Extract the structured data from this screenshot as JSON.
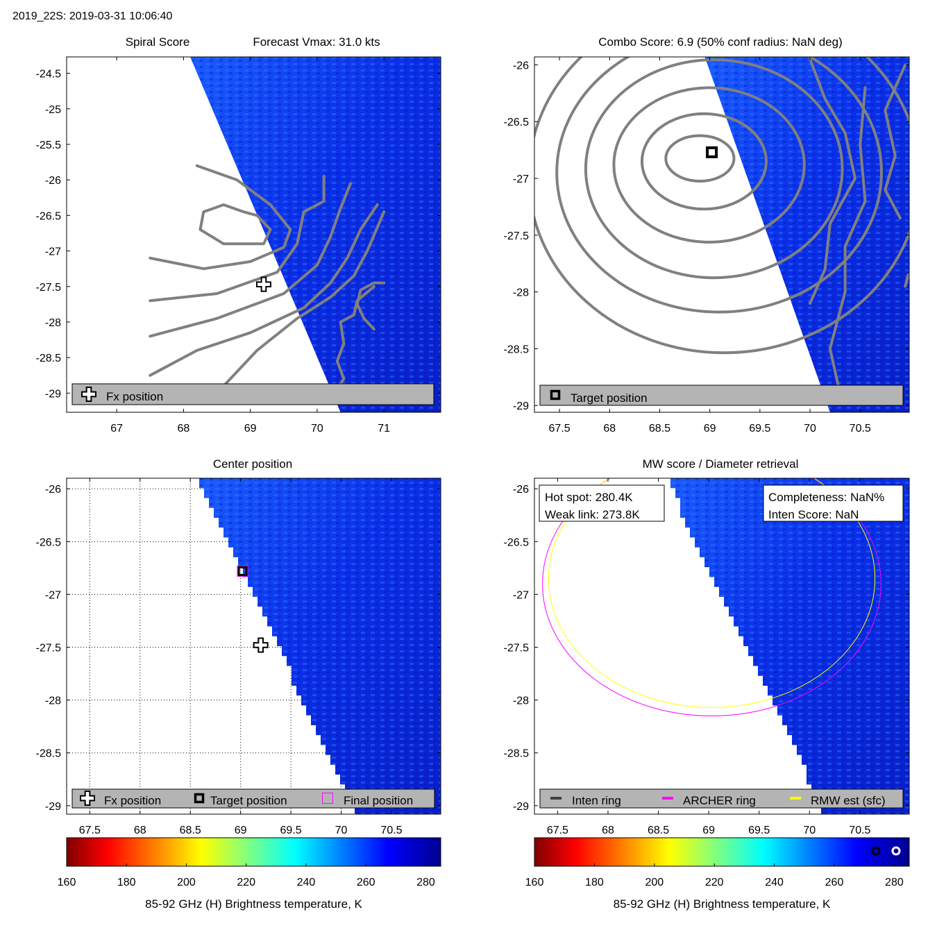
{
  "header": "2019_22S: 2019-03-31 10:06:40",
  "colors": {
    "contour": "#808080",
    "legend_bg": "#b4b4b4",
    "inten_ring": "#404040",
    "archer_ring": "#ff00ff",
    "rmw_ring": "#ffff00",
    "final_marker": "#ff00ff"
  },
  "chart_data": [
    {
      "id": "spiral",
      "type": "heatmap",
      "title_left": "Spiral Score",
      "title_right": "Forecast Vmax: 31.0 kts",
      "xlim": [
        66.25,
        71.85
      ],
      "ylim": [
        -29.27,
        -24.27
      ],
      "xticks": [
        67,
        68,
        69,
        70,
        71
      ],
      "yticks": [
        -24.5,
        -25,
        -25.5,
        -26,
        -26.5,
        -27,
        -27.5,
        -28,
        -28.5,
        -29
      ],
      "swath_edge": [
        [
          68.1,
          -24.27
        ],
        [
          70.35,
          -29.27
        ]
      ],
      "contours": [
        [
          [
            68.9,
            -26.45
          ],
          [
            68.6,
            -26.35
          ],
          [
            68.3,
            -26.45
          ],
          [
            68.25,
            -26.7
          ],
          [
            68.6,
            -26.9
          ],
          [
            69.2,
            -26.9
          ],
          [
            69.3,
            -26.7
          ],
          [
            69.1,
            -26.5
          ],
          [
            68.9,
            -26.45
          ]
        ],
        [
          [
            68.2,
            -25.8
          ],
          [
            68.8,
            -26.0
          ],
          [
            69.3,
            -26.35
          ],
          [
            69.6,
            -26.7
          ],
          [
            69.5,
            -26.95
          ],
          [
            69.0,
            -27.15
          ],
          [
            68.3,
            -27.25
          ],
          [
            67.5,
            -27.1
          ]
        ],
        [
          [
            70.1,
            -25.95
          ],
          [
            70.1,
            -26.3
          ],
          [
            69.8,
            -26.45
          ],
          [
            69.7,
            -26.9
          ],
          [
            69.4,
            -27.3
          ],
          [
            68.5,
            -27.6
          ],
          [
            67.5,
            -27.7
          ]
        ],
        [
          [
            70.5,
            -26.05
          ],
          [
            70.35,
            -26.4
          ],
          [
            70.2,
            -26.8
          ],
          [
            70.0,
            -27.2
          ],
          [
            69.5,
            -27.6
          ],
          [
            68.5,
            -27.95
          ],
          [
            67.5,
            -28.2
          ]
        ],
        [
          [
            70.9,
            -26.35
          ],
          [
            70.65,
            -26.7
          ],
          [
            70.45,
            -27.1
          ],
          [
            70.2,
            -27.45
          ],
          [
            69.8,
            -27.8
          ],
          [
            69.0,
            -28.15
          ],
          [
            68.2,
            -28.4
          ],
          [
            67.5,
            -28.75
          ]
        ],
        [
          [
            71.0,
            -26.45
          ],
          [
            70.75,
            -27.0
          ],
          [
            70.55,
            -27.35
          ],
          [
            70.2,
            -27.65
          ],
          [
            69.7,
            -27.95
          ],
          [
            69.1,
            -28.4
          ],
          [
            68.7,
            -28.8
          ],
          [
            68.45,
            -29.05
          ]
        ],
        [
          [
            71.0,
            -27.45
          ],
          [
            70.85,
            -27.45
          ],
          [
            70.65,
            -27.55
          ],
          [
            70.6,
            -27.75
          ],
          [
            70.7,
            -27.95
          ],
          [
            70.85,
            -28.1
          ]
        ],
        [
          [
            70.85,
            -27.5
          ],
          [
            70.6,
            -27.7
          ],
          [
            70.55,
            -27.9
          ],
          [
            70.35,
            -28.0
          ],
          [
            70.4,
            -28.3
          ],
          [
            70.3,
            -28.55
          ],
          [
            70.4,
            -28.8
          ],
          [
            70.25,
            -29.0
          ]
        ]
      ],
      "fx_position": [
        69.2,
        -27.47
      ],
      "legend": [
        "Fx position"
      ]
    },
    {
      "id": "combo",
      "type": "heatmap",
      "title": "Combo Score: 6.9  (50% conf radius: NaN deg)",
      "xlim": [
        67.25,
        70.99
      ],
      "ylim": [
        -29.06,
        -25.93
      ],
      "xticks": [
        67.5,
        68,
        68.5,
        69,
        69.5,
        70,
        70.5
      ],
      "yticks": [
        -26,
        -26.5,
        -27,
        -27.5,
        -28,
        -28.5,
        -29
      ],
      "swath_edge": [
        [
          68.95,
          -25.93
        ],
        [
          70.2,
          -29.06
        ]
      ],
      "center": [
        68.85,
        -26.8
      ],
      "rings": [
        [
          0.34,
          0.2
        ],
        [
          0.62,
          0.42
        ],
        [
          0.95,
          0.68
        ],
        [
          1.28,
          0.96
        ],
        [
          1.62,
          1.23
        ],
        [
          1.95,
          1.55
        ]
      ],
      "extra_contours": [
        [
          [
            70.0,
            -25.95
          ],
          [
            70.15,
            -26.3
          ],
          [
            70.35,
            -26.6
          ],
          [
            70.45,
            -27.0
          ],
          [
            70.2,
            -27.4
          ],
          [
            70.15,
            -27.8
          ],
          [
            70.0,
            -28.1
          ]
        ],
        [
          [
            70.55,
            -26.2
          ],
          [
            70.5,
            -26.7
          ],
          [
            70.55,
            -27.2
          ],
          [
            70.35,
            -27.6
          ],
          [
            70.35,
            -28.0
          ],
          [
            70.2,
            -28.5
          ],
          [
            70.3,
            -28.9
          ]
        ],
        [
          [
            70.95,
            -26.0
          ],
          [
            70.75,
            -26.4
          ],
          [
            70.85,
            -26.8
          ],
          [
            70.75,
            -27.1
          ],
          [
            70.9,
            -27.35
          ]
        ],
        [
          [
            70.98,
            -27.85
          ],
          [
            70.95,
            -27.95
          ]
        ]
      ],
      "target_position": [
        69.02,
        -26.77
      ],
      "legend": [
        "Target position"
      ]
    },
    {
      "id": "center",
      "type": "heatmap",
      "title": "Center position",
      "xlim": [
        67.27,
        70.99
      ],
      "ylim": [
        -29.08,
        -25.9
      ],
      "xticks": [
        67.5,
        68,
        68.5,
        69,
        69.5,
        70,
        70.5
      ],
      "yticks": [
        -26,
        -26.5,
        -27,
        -27.5,
        -28,
        -28.5,
        -29
      ],
      "grid": true,
      "swath_edge": [
        [
          68.6,
          -25.9
        ],
        [
          70.18,
          -29.08
        ]
      ],
      "target_position": [
        69.02,
        -26.78
      ],
      "fx_position": [
        69.2,
        -27.48
      ],
      "final_position": [
        69.02,
        -26.78
      ],
      "legend": [
        "Fx position",
        "Target position",
        "Final position"
      ]
    },
    {
      "id": "mw",
      "type": "heatmap",
      "title": "MW score / Diameter retrieval",
      "xlim": [
        67.27,
        70.99
      ],
      "ylim": [
        -29.08,
        -25.9
      ],
      "xticks": [
        67.5,
        68,
        68.5,
        69,
        69.5,
        70,
        70.5
      ],
      "yticks": [
        -26,
        -26.5,
        -27,
        -27.5,
        -28,
        -28.5,
        -29
      ],
      "swath_edge": [
        [
          68.6,
          -25.9
        ],
        [
          70.18,
          -29.08
        ]
      ],
      "archer_ring": {
        "center": [
          69.03,
          -26.9
        ],
        "rx": 1.68,
        "ry": 1.25
      },
      "rmw_ring": {
        "center": [
          69.03,
          -26.85
        ],
        "rx": 1.62,
        "ry": 1.22
      },
      "hot_spot": "Hot spot: 280.4K",
      "weak_link": "Weak link: 273.8K",
      "completeness": "Completeness: NaN%",
      "inten_score": "Inten Score: NaN",
      "legend": [
        "Inten ring",
        "ARCHER ring",
        "RMW est (sfc)"
      ]
    }
  ],
  "colorbar": {
    "ticks": [
      160,
      180,
      200,
      220,
      240,
      260,
      280
    ],
    "range": [
      160,
      285
    ],
    "label": "85-92 GHz (H) Brightness temperature, K"
  }
}
